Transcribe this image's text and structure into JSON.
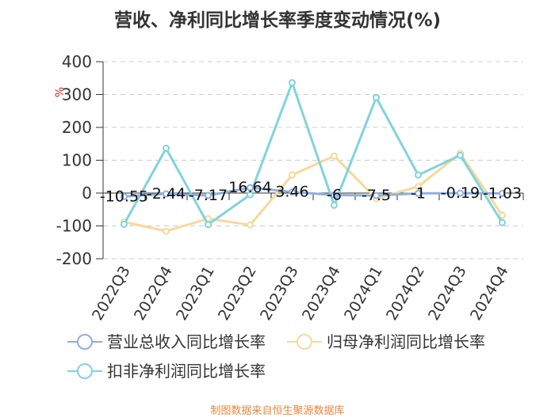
{
  "chart_data": {
    "type": "line",
    "title": "营收、净利同比增长率季度变动情况(%)",
    "ylabel": "%",
    "xlabel": "",
    "ylim": [
      -200,
      400
    ],
    "yticks": [
      400,
      300,
      200,
      100,
      0,
      -100,
      -200
    ],
    "categories": [
      "2022Q3",
      "2022Q4",
      "2023Q1",
      "2023Q2",
      "2023Q3",
      "2023Q4",
      "2024Q1",
      "2024Q2",
      "2024Q3",
      "2024Q4"
    ],
    "series": [
      {
        "name": "营业总收入同比增长率",
        "color": "#8fb0e0",
        "values": [
          -10.55,
          -2.44,
          -7.17,
          16.64,
          3.46,
          -6,
          -7.5,
          -1,
          -0.19,
          -1.03
        ],
        "labels": [
          "-10.55",
          "-2.44",
          "-7.17",
          "16.64",
          "3.46",
          "-6",
          "-7.5",
          "-1",
          "-0.19",
          "-1.03"
        ]
      },
      {
        "name": "归母净利润同比增长率",
        "color": "#f8d89a",
        "values": [
          -88,
          -116,
          -78,
          -97,
          55,
          113,
          -17,
          20,
          121,
          -68
        ]
      },
      {
        "name": "扣非净利润同比增长率",
        "color": "#80d4dc",
        "values": [
          -95,
          136,
          -96,
          -5,
          336,
          -37,
          291,
          55,
          115,
          -90
        ]
      }
    ],
    "legend_position": "bottom",
    "grid": true
  },
  "footer": {
    "source": "制图数据来自恒生聚源数据库"
  }
}
